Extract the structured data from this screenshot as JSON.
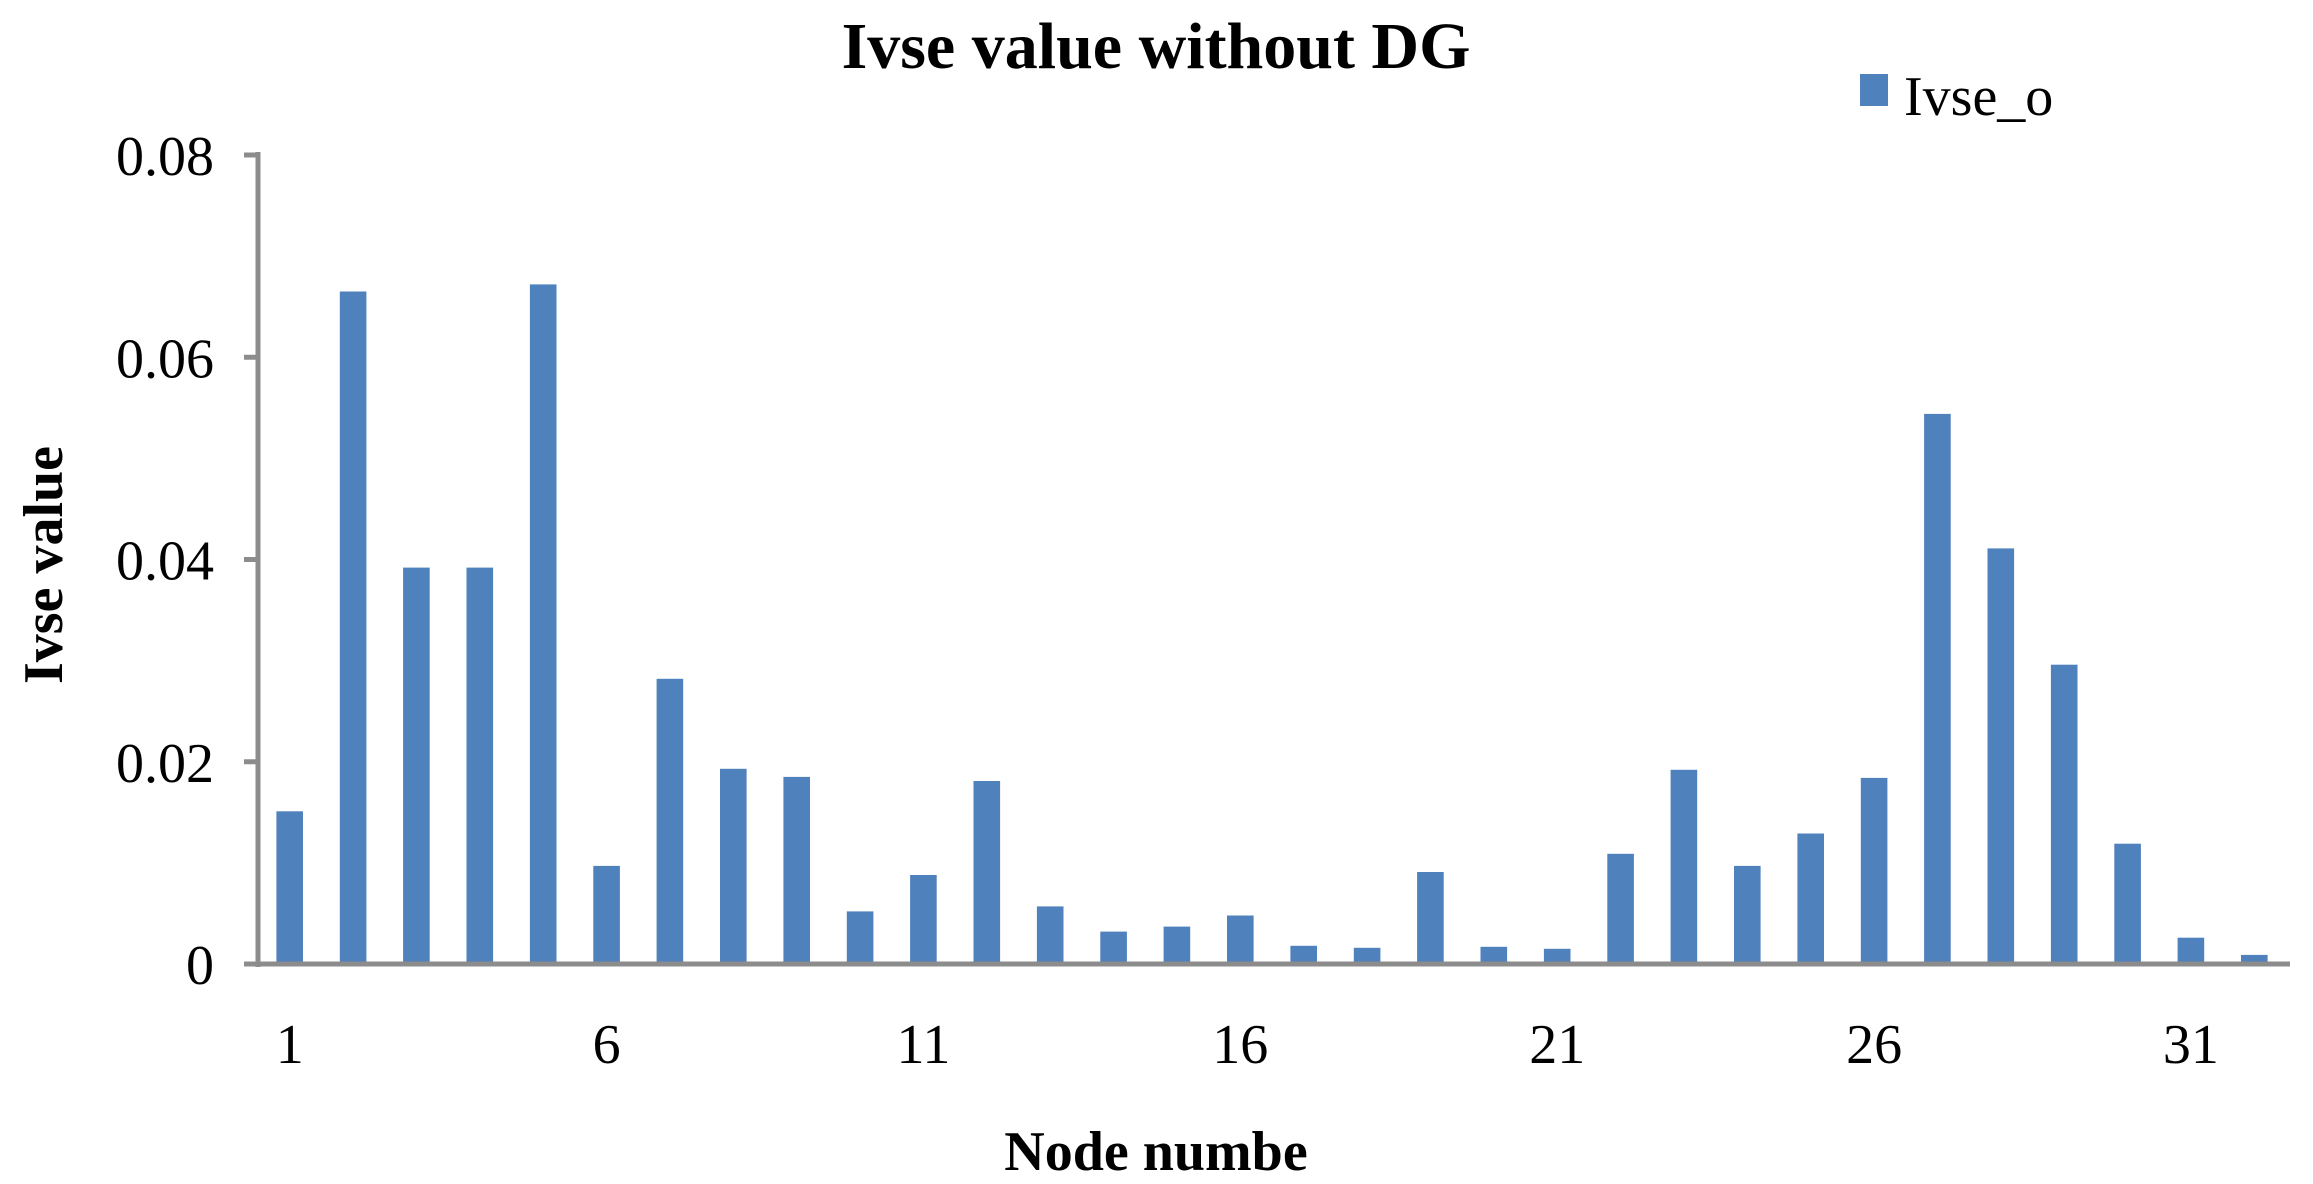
{
  "chart_data": {
    "type": "bar",
    "title": "Ivse value without DG",
    "xlabel": "Node numbe",
    "ylabel": "Ivse value",
    "ylim": [
      0,
      0.08
    ],
    "y_ticks": [
      "0",
      "0.02",
      "0.04",
      "0.06",
      "0.08"
    ],
    "y_tick_values": [
      0,
      0.02,
      0.04,
      0.06,
      0.08
    ],
    "x_tick_labels": [
      "1",
      "6",
      "11",
      "16",
      "21",
      "26",
      "31"
    ],
    "x_tick_nodes": [
      1,
      6,
      11,
      16,
      21,
      26,
      31
    ],
    "categories": [
      1,
      2,
      3,
      4,
      5,
      6,
      7,
      8,
      9,
      10,
      11,
      12,
      13,
      14,
      15,
      16,
      17,
      18,
      19,
      20,
      21,
      22,
      23,
      24,
      25,
      26,
      27,
      28,
      29,
      30,
      31,
      32
    ],
    "series": [
      {
        "name": "Ivse_o",
        "color": "#4f81bd",
        "values": [
          0.0151,
          0.0665,
          0.0392,
          0.0392,
          0.0672,
          0.0097,
          0.0282,
          0.0193,
          0.0185,
          0.0052,
          0.0088,
          0.0181,
          0.0057,
          0.0032,
          0.0037,
          0.0048,
          0.0018,
          0.0016,
          0.0091,
          0.0017,
          0.0015,
          0.0109,
          0.0192,
          0.0097,
          0.0129,
          0.0184,
          0.0544,
          0.0411,
          0.0296,
          0.0119,
          0.0026,
          0.0009
        ]
      }
    ],
    "legend_position": "top-right",
    "grid": false,
    "axis_color": "#8c8c8c"
  }
}
